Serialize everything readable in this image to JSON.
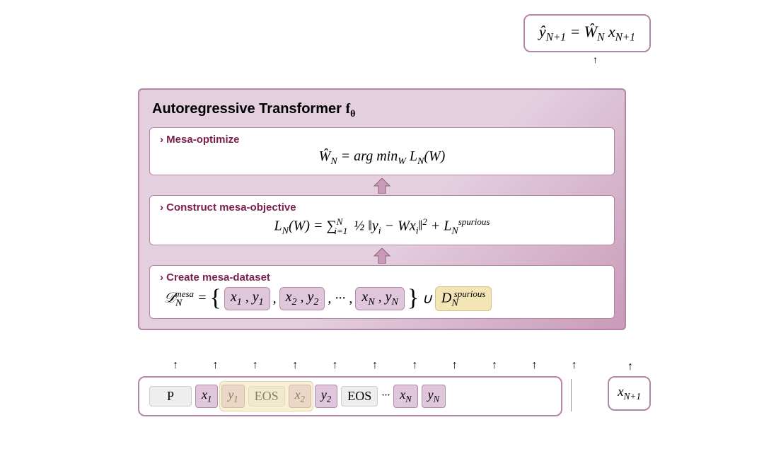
{
  "colors": {
    "border_purple": "#b585a5",
    "bg_purple_light": "#e4cfdf",
    "bg_purple_dark": "#c99bb9",
    "chip_purple_bg": "#e0c6da",
    "chip_purple_border": "#b48aaa",
    "chip_yellow_bg": "#f3e5b5",
    "chip_yellow_border": "#d4c389",
    "label_color": "#7a1f4d",
    "token_grey_bg": "#eeeeee",
    "token_grey_border": "#cccccc",
    "white": "#ffffff",
    "arrow_fill": "#c99bb9",
    "arrow_stroke": "#8d5f7d"
  },
  "output": {
    "formula_html": "ŷ<sub>N+1</sub> = Ŵ<sub>N</sub> x<sub>N+1</sub>"
  },
  "main": {
    "title_prefix": "Autoregressive Transformer ",
    "title_symbol_html": "f<sub>θ</sub>",
    "boxes": [
      {
        "label": "Mesa-optimize",
        "formula_html": "Ŵ<sub>N</sub> = arg min<sub>W</sub> L<sub>N</sub>(W)"
      },
      {
        "label": "Construct mesa-objective",
        "formula_html": "L<sub>N</sub>(W) = ∑<span style='font-size:0.65em;vertical-align:super'>N</span><span style='font-size:0.65em;vertical-align:sub;margin-left:-12px;margin-right:4px'>i=1</span> ½ ‖y<sub>i</sub> − Wx<sub>i</sub>‖<sup>2</sup> + L<sub>N</sub><sup>spurious</sup>"
      },
      {
        "label": "Create mesa-dataset",
        "lhs_html": "𝒟<sub>N</sub><sup style='margin-left:-10px'>mesa</sup> =",
        "pairs": [
          "x<sub>1</sub> , y<sub>1</sub>",
          "x<sub>2</sub> , y<sub>2</sub>",
          "x<sub>N</sub> , y<sub>N</sub>"
        ],
        "ellipsis": ", ··· ,",
        "union": "∪",
        "spurious_html": "D<sub>N</sub><sup style='margin-left:-6px'>spurious</sup>"
      }
    ]
  },
  "arrows_up_count": 11,
  "input": {
    "tokens": [
      {
        "text": "P",
        "cls": "tok-plain",
        "wide": true
      },
      {
        "text": "x<sub>1</sub>",
        "cls": "tok-x"
      },
      {
        "text": "y<sub>1</sub>",
        "cls": "tok-y"
      },
      {
        "text": "EOS",
        "cls": "tok-plain"
      },
      {
        "text": "x<sub>2</sub>",
        "cls": "tok-x"
      },
      {
        "text": "y<sub>2</sub>",
        "cls": "tok-y"
      },
      {
        "text": "EOS",
        "cls": "tok-plain"
      }
    ],
    "ellipsis": "···",
    "tail_tokens": [
      {
        "text": "x<sub>N</sub>",
        "cls": "tok-x"
      },
      {
        "text": "y<sub>N</sub>",
        "cls": "tok-y"
      }
    ],
    "extra_html": "x<sub>N+1</sub>"
  }
}
